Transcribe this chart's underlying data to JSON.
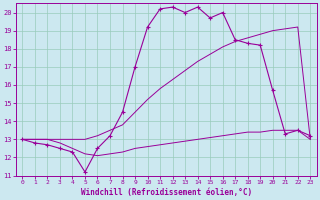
{
  "xlabel": "Windchill (Refroidissement éolien,°C)",
  "bg_color": "#cce8f0",
  "grid_color": "#99ccbb",
  "line_color": "#990099",
  "hours": [
    0,
    1,
    2,
    3,
    4,
    5,
    6,
    7,
    8,
    9,
    10,
    11,
    12,
    13,
    14,
    15,
    16,
    17,
    18,
    19,
    20,
    21,
    22,
    23
  ],
  "temp": [
    13.0,
    12.8,
    12.7,
    12.5,
    12.3,
    11.2,
    12.5,
    13.2,
    14.5,
    17.0,
    19.2,
    20.2,
    20.3,
    20.0,
    20.3,
    19.7,
    20.0,
    18.5,
    18.3,
    18.2,
    15.7,
    13.3,
    13.5,
    13.2
  ],
  "windchill": [
    13.0,
    13.0,
    13.0,
    13.0,
    13.0,
    13.0,
    13.2,
    13.5,
    13.8,
    14.5,
    15.2,
    15.8,
    16.3,
    16.8,
    17.3,
    17.7,
    18.1,
    18.4,
    18.6,
    18.8,
    19.0,
    19.1,
    19.2,
    13.0
  ],
  "mintemp": [
    13.0,
    13.0,
    13.0,
    12.8,
    12.5,
    12.2,
    12.1,
    12.2,
    12.3,
    12.5,
    12.6,
    12.7,
    12.8,
    12.9,
    13.0,
    13.1,
    13.2,
    13.3,
    13.4,
    13.4,
    13.5,
    13.5,
    13.5,
    13.0
  ],
  "xlim": [
    -0.5,
    23.5
  ],
  "ylim": [
    11,
    20.5
  ],
  "yticks": [
    11,
    12,
    13,
    14,
    15,
    16,
    17,
    18,
    19,
    20
  ],
  "xticks": [
    0,
    1,
    2,
    3,
    4,
    5,
    6,
    7,
    8,
    9,
    10,
    11,
    12,
    13,
    14,
    15,
    16,
    17,
    18,
    19,
    20,
    21,
    22,
    23
  ]
}
